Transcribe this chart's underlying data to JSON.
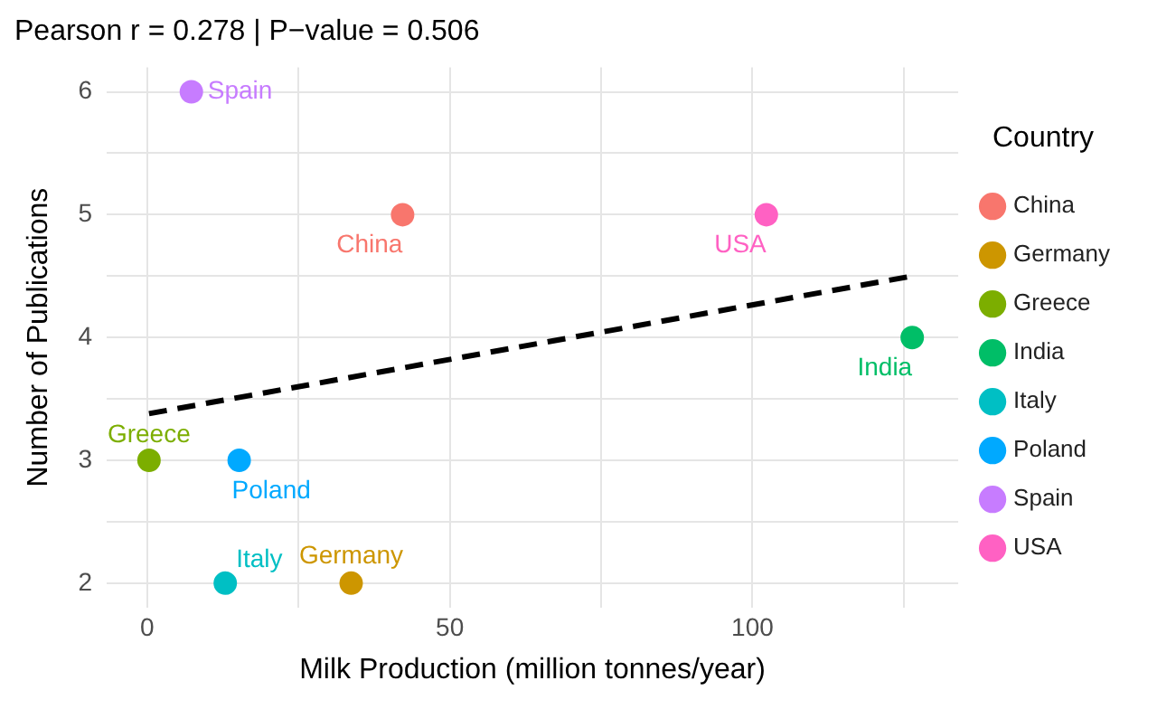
{
  "chart_data": {
    "type": "scatter",
    "title": "Pearson r = 0.278 | P−value = 0.506",
    "xlabel": "Milk Production (million tonnes/year)",
    "ylabel": "Number of Publications",
    "legend_title": "Country",
    "legend": "right",
    "grid": true,
    "marker": "circle",
    "xlim": [
      -6.7,
      134
    ],
    "xticks": [
      0,
      {
        "value": 25,
        "label": null
      },
      50,
      {
        "value": 75,
        "label": null
      },
      100,
      {
        "value": 125,
        "label": null
      }
    ],
    "ylim": [
      1.8,
      6.2
    ],
    "yticks": [
      2,
      {
        "value": 2.5,
        "label": null
      },
      3,
      {
        "value": 3.5,
        "label": null
      },
      4,
      {
        "value": 4.5,
        "label": null
      },
      5,
      {
        "value": 5.5,
        "label": null
      },
      6
    ],
    "series": [
      {
        "name": "China",
        "color": "#f8766d",
        "x": [
          42.2
        ],
        "values": [
          5
        ]
      },
      {
        "name": "Germany",
        "color": "#cd9600",
        "x": [
          33.7
        ],
        "values": [
          2
        ]
      },
      {
        "name": "Greece",
        "color": "#7cae00",
        "x": [
          0.3
        ],
        "values": [
          3
        ]
      },
      {
        "name": "India",
        "color": "#00be67",
        "x": [
          126.4
        ],
        "values": [
          4
        ]
      },
      {
        "name": "Italy",
        "color": "#00bfc4",
        "x": [
          12.9
        ],
        "values": [
          2
        ]
      },
      {
        "name": "Poland",
        "color": "#00a9ff",
        "x": [
          15.2
        ],
        "values": [
          3
        ]
      },
      {
        "name": "Spain",
        "color": "#c77cff",
        "x": [
          7.3
        ],
        "values": [
          6
        ]
      },
      {
        "name": "USA",
        "color": "#ff61c3",
        "x": [
          102.3
        ],
        "values": [
          5
        ]
      },
      {
        "type": "line",
        "color": "#000000",
        "line_style": "dashed",
        "marker": "none",
        "x": [
          0.3,
          126.4
        ],
        "values": [
          3.38,
          4.5
        ]
      }
    ]
  }
}
